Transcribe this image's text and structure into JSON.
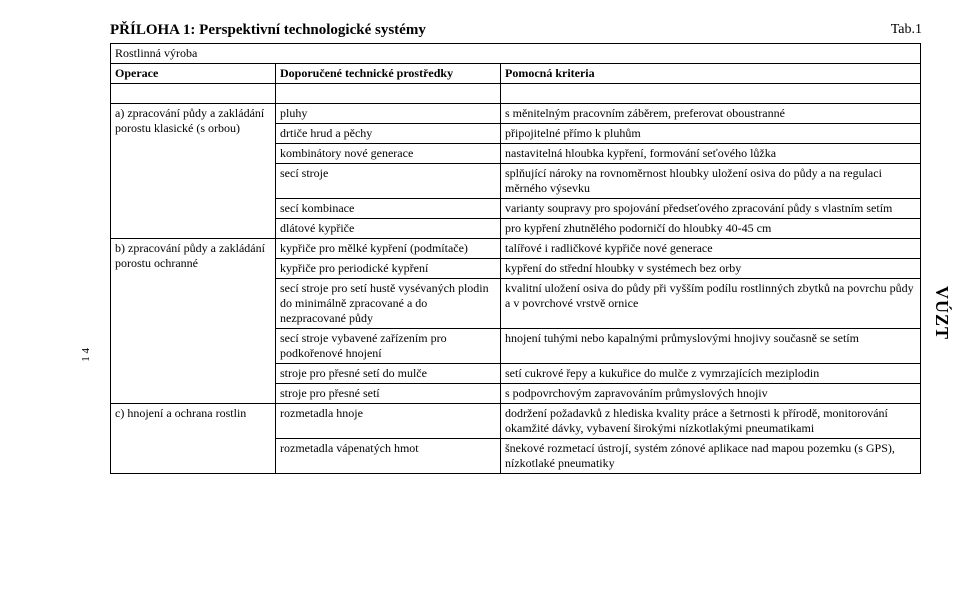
{
  "page": {
    "title": "PŘÍLOHA 1: Perspektivní technologické systémy",
    "tab": "Tab.1",
    "pageNumber": "1 4",
    "sideLabel": "VÚZT"
  },
  "subheading": "Rostlinná výroba",
  "columns": {
    "op": "Operace",
    "tech": "Doporučené technické prostředky",
    "crit": "Pomocná kriteria"
  },
  "rows": {
    "a": {
      "op": "a) zpracování půdy a zakládání porostu klasické (s orbou)",
      "r1t": "pluhy",
      "r1c": "s měnitelným pracovním záběrem, preferovat oboustranné",
      "r2t": "drtiče hrud a pěchy",
      "r2c": "připojitelné přímo k pluhům",
      "r3t": "kombinátory nové generace",
      "r3c": "nastavitelná hloubka kypření, formování seťového lůžka",
      "r4t": "secí stroje",
      "r4c": "splňující nároky na rovnoměrnost hloubky uložení osiva do půdy a na regulaci měrného výsevku",
      "r5t": "secí kombinace",
      "r5c": "varianty soupravy pro spojování předseťového zpracování půdy s vlastním setím",
      "r6t": "dlátové kypřiče",
      "r6c": "pro kypření zhutnělého podorničí do hloubky 40-45 cm"
    },
    "b": {
      "op": "b) zpracování půdy a zakládání porostu ochranné",
      "r1t": "kypřiče pro mělké kypření (podmítače)",
      "r1c": "talířové i radličkové kypřiče nové generace",
      "r2t": "kypřiče pro periodické kypření",
      "r2c": "kypření do střední hloubky v systémech bez orby",
      "r3t": "secí stroje pro setí hustě vysévaných plodin do minimálně zpracované a do nezpracované půdy",
      "r3c": "kvalitní uložení osiva do půdy při vyšším podílu rostlinných zbytků na povrchu půdy a v povrchové vrstvě ornice",
      "r4t": "secí stroje vybavené zařízením pro podkořenové hnojení",
      "r4c": "hnojení tuhými nebo kapalnými průmyslovými hnojivy současně se setím",
      "r5t": "stroje pro přesné setí do mulče",
      "r5c": "setí cukrové řepy a kukuřice do mulče z vymrzajících meziplodin",
      "r6t": "stroje pro přesné setí",
      "r6c": "s podpovrchovým zapravováním průmyslových hnojiv"
    },
    "c": {
      "op": "c) hnojení a ochrana rostlin",
      "r1t": "rozmetadla hnoje",
      "r1c": "dodržení požadavků z hlediska kvality práce a šetrnosti k přírodě, monitorování okamžité dávky, vybavení širokými nízkotlakými pneumatikami",
      "r2t": "rozmetadla vápenatých hmot",
      "r2c": "šnekové rozmetací ústrojí, systém zónové aplikace nad mapou pozemku (s GPS), nízkotlaké pneumatiky"
    }
  }
}
